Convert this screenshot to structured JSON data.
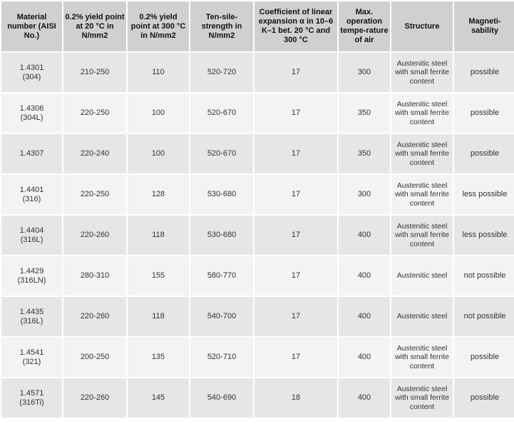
{
  "headers": [
    "Material number (AISI No.)",
    "0.2% yield point at 20 °C in N/mm2",
    "0.2% yield point at 300 °C in N/mm2",
    "Ten-sile-strength in N/mm2",
    "Coefficient of linear expansion α in 10–6 K–1 bet. 20 °C and 300 °C",
    "Max. operation tempe-rature of air",
    "Structure",
    "Magneti-sability"
  ],
  "rows": [
    {
      "material": "1.4301\n(304)",
      "yield20": "210-250",
      "yield300": "110",
      "tensile": "520-720",
      "coeff": "17",
      "maxtemp": "300",
      "structure": "Austenitic steel with small ferrite content",
      "magnet": "possible"
    },
    {
      "material": "1.4306\n(304L)",
      "yield20": "220-250",
      "yield300": "100",
      "tensile": "520-670",
      "coeff": "17",
      "maxtemp": "350",
      "structure": "Austenitic steel with small ferrite content",
      "magnet": "possible"
    },
    {
      "material": "1.4307",
      "yield20": "220-240",
      "yield300": "100",
      "tensile": "520-670",
      "coeff": "17",
      "maxtemp": "350",
      "structure": "Austenitic steel with small ferrite content",
      "magnet": "possible"
    },
    {
      "material": "1.4401\n(316)",
      "yield20": "220-250",
      "yield300": "128",
      "tensile": "530-680",
      "coeff": "17",
      "maxtemp": "300",
      "structure": "Austenitic steel with small ferrite content",
      "magnet": "less possible"
    },
    {
      "material": "1.4404\n(316L)",
      "yield20": "220-260",
      "yield300": "118",
      "tensile": "530-680",
      "coeff": "17",
      "maxtemp": "400",
      "structure": "Austenitic steel with small ferrite content",
      "magnet": "less possible"
    },
    {
      "material": "1.4429\n(316LN)",
      "yield20": "280-310",
      "yield300": "155",
      "tensile": "580-770",
      "coeff": "17",
      "maxtemp": "400",
      "structure": "Austenitic steel",
      "magnet": "not possible"
    },
    {
      "material": "1.4435\n(316L)",
      "yield20": "220-260",
      "yield300": "118",
      "tensile": "540-700",
      "coeff": "17",
      "maxtemp": "400",
      "structure": "Austenitic steel",
      "magnet": "not possible"
    },
    {
      "material": "1.4541\n(321)",
      "yield20": "200-250",
      "yield300": "135",
      "tensile": "520-710",
      "coeff": "17",
      "maxtemp": "400",
      "structure": "Austenitic steel with small ferrite content",
      "magnet": "possible"
    },
    {
      "material": "1.4571\n(316Ti)",
      "yield20": "220-260",
      "yield300": "145",
      "tensile": "540-690",
      "coeff": "18",
      "maxtemp": "400",
      "structure": "Austenitic steel with small ferrite content",
      "magnet": "possible"
    }
  ]
}
